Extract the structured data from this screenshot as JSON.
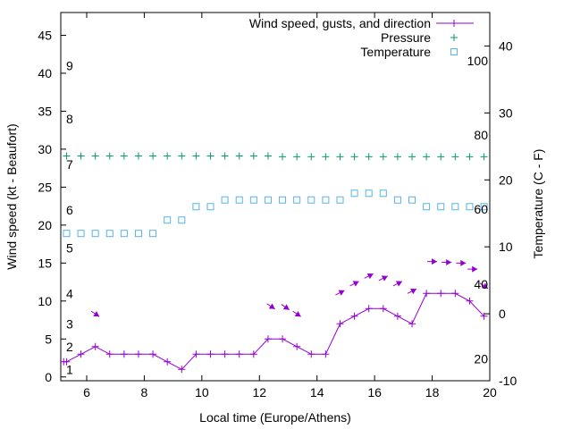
{
  "chart_data": {
    "type": "line",
    "xlabel": "Local time (Europe/Athens)",
    "ylabel_left": "Wind speed (kt - Beaufort)",
    "ylabel_right": "Temperature (C - F)",
    "xlim": [
      5.1,
      20
    ],
    "ylim_left": [
      -0.5,
      48
    ],
    "ylim_right": [
      -10,
      45
    ],
    "x_ticks": [
      6,
      8,
      10,
      12,
      14,
      16,
      18,
      20
    ],
    "y_ticks_left": [
      0,
      5,
      10,
      15,
      20,
      25,
      30,
      35,
      40,
      45
    ],
    "y_ticks_right": [
      -10,
      0,
      10,
      20,
      30,
      40
    ],
    "beaufort_labels": [
      {
        "text": "1",
        "kt": 1
      },
      {
        "text": "2",
        "kt": 4
      },
      {
        "text": "3",
        "kt": 7
      },
      {
        "text": "4",
        "kt": 11
      },
      {
        "text": "5",
        "kt": 17
      },
      {
        "text": "6",
        "kt": 22
      },
      {
        "text": "7",
        "kt": 28
      },
      {
        "text": "8",
        "kt": 34
      },
      {
        "text": "9",
        "kt": 41
      }
    ],
    "fahrenheit_labels": [
      {
        "text": "20",
        "c": -6.7
      },
      {
        "text": "40",
        "c": 4.4
      },
      {
        "text": "60",
        "c": 15.6
      },
      {
        "text": "80",
        "c": 26.7
      },
      {
        "text": "100",
        "c": 37.8
      }
    ],
    "legend": [
      {
        "label": "Wind speed, gusts, and direction",
        "color": "#9400d3",
        "marker": "line-plus"
      },
      {
        "label": "Pressure",
        "color": "#009e73",
        "marker": "plus"
      },
      {
        "label": "Temperature",
        "color": "#56b4e9",
        "marker": "square"
      }
    ],
    "series": [
      {
        "name": "Wind speed, gusts, and direction",
        "color": "#9400d3",
        "axis": "left",
        "x": [
          5.2,
          5.3,
          5.8,
          6.3,
          6.8,
          7.3,
          7.8,
          8.3,
          8.8,
          9.3,
          9.8,
          10.3,
          10.8,
          11.3,
          11.8,
          12.3,
          12.8,
          13.3,
          13.8,
          14.3,
          14.8,
          15.3,
          15.8,
          16.3,
          16.8,
          17.3,
          17.8,
          18.3,
          18.8,
          19.3,
          19.8
        ],
        "y": [
          2,
          2,
          3,
          4,
          3,
          3,
          3,
          3,
          2,
          1,
          3,
          3,
          3,
          3,
          3,
          5,
          5,
          4,
          3,
          3,
          7,
          8,
          9,
          9,
          8,
          7,
          11,
          11,
          11,
          10,
          8
        ]
      },
      {
        "name": "Pressure",
        "color": "#009e73",
        "axis": "left",
        "x": [
          5.3,
          5.8,
          6.3,
          6.8,
          7.3,
          7.8,
          8.3,
          8.8,
          9.3,
          9.8,
          10.3,
          10.8,
          11.3,
          11.8,
          12.3,
          12.8,
          13.3,
          13.8,
          14.3,
          14.8,
          15.3,
          15.8,
          16.3,
          16.8,
          17.3,
          17.8,
          18.3,
          18.8,
          19.3,
          19.8
        ],
        "y": [
          29.1,
          29.1,
          29.1,
          29.1,
          29.1,
          29.1,
          29.1,
          29.1,
          29.1,
          29.1,
          29.1,
          29.1,
          29.1,
          29.1,
          29.1,
          29.0,
          29.0,
          29.0,
          29.0,
          29.0,
          29.0,
          29.0,
          29.0,
          29.0,
          29.0,
          29.0,
          29.0,
          29.0,
          29.0,
          29.0
        ]
      },
      {
        "name": "Temperature",
        "color": "#56b4e9",
        "axis": "right",
        "x": [
          5.3,
          5.8,
          6.3,
          6.8,
          7.3,
          7.8,
          8.3,
          8.8,
          9.3,
          9.8,
          10.3,
          10.8,
          11.3,
          11.8,
          12.3,
          12.8,
          13.3,
          13.8,
          14.3,
          14.8,
          15.3,
          15.8,
          16.3,
          16.8,
          17.3,
          17.8,
          18.3,
          18.8,
          19.3,
          19.8
        ],
        "y": [
          12,
          12,
          12,
          12,
          12,
          12,
          12,
          14,
          14,
          16,
          16,
          17,
          17,
          17,
          17,
          17,
          17,
          17,
          17,
          17,
          18,
          18,
          18,
          17,
          17,
          16,
          16,
          16,
          16,
          16
        ]
      }
    ],
    "wind_arrows": [
      {
        "x": 6.3,
        "kt": 8.3,
        "dir": "down-right"
      },
      {
        "x": 12.4,
        "kt": 9.3,
        "dir": "down-right"
      },
      {
        "x": 12.9,
        "kt": 9.2,
        "dir": "down-right"
      },
      {
        "x": 13.3,
        "kt": 8.3,
        "dir": "down-right"
      },
      {
        "x": 14.8,
        "kt": 11.1,
        "dir": "up-right"
      },
      {
        "x": 15.3,
        "kt": 12.3,
        "dir": "up-right"
      },
      {
        "x": 15.8,
        "kt": 13.3,
        "dir": "up-right"
      },
      {
        "x": 16.3,
        "kt": 13.0,
        "dir": "up-right"
      },
      {
        "x": 16.8,
        "kt": 12.3,
        "dir": "up-right"
      },
      {
        "x": 17.3,
        "kt": 11.3,
        "dir": "up-right"
      },
      {
        "x": 18.0,
        "kt": 15.2,
        "dir": "right"
      },
      {
        "x": 18.5,
        "kt": 15.1,
        "dir": "right"
      },
      {
        "x": 19.0,
        "kt": 15.0,
        "dir": "right"
      },
      {
        "x": 19.4,
        "kt": 14.2,
        "dir": "right"
      },
      {
        "x": 19.8,
        "kt": 12.0,
        "dir": "down-right"
      }
    ]
  }
}
